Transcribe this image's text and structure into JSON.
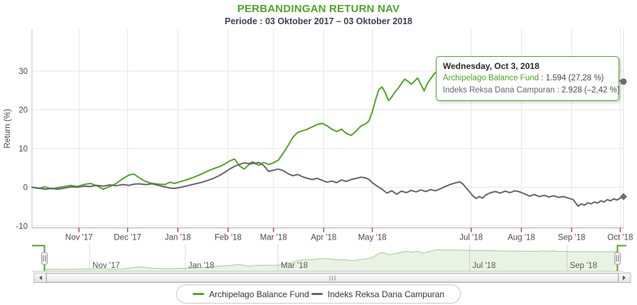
{
  "chart_data": {
    "type": "line",
    "title": "PERBANDINGAN RETURN NAV",
    "subtitle": "Periode : 03 Oktober 2017 – 03 Oktober 2018",
    "ylabel": "Return (%)",
    "ylim": [
      -10,
      40
    ],
    "grid": true,
    "legend_position": "bottom-center",
    "x_range_days": 365,
    "yticks": [
      {
        "value": 30,
        "label": "30"
      },
      {
        "value": 20,
        "label": "20"
      },
      {
        "value": 10,
        "label": "10"
      },
      {
        "value": 0,
        "label": "0"
      },
      {
        "value": -10,
        "label": "-10"
      }
    ],
    "xticks": [
      {
        "day": 29,
        "label": "Nov '17"
      },
      {
        "day": 59,
        "label": "Dec '17"
      },
      {
        "day": 90,
        "label": "Jan '18"
      },
      {
        "day": 121,
        "label": "Feb '18"
      },
      {
        "day": 149,
        "label": "Mar '18"
      },
      {
        "day": 180,
        "label": "Apr '18"
      },
      {
        "day": 210,
        "label": "May '18"
      },
      {
        "day": 271,
        "label": "Jul '18"
      },
      {
        "day": 302,
        "label": "Aug '18"
      },
      {
        "day": 333,
        "label": "Sep '18"
      },
      {
        "day": 363,
        "label": "Oct '18"
      }
    ],
    "series": [
      {
        "name": "Archipelago Balance Fund",
        "color": "#53A428",
        "end_marker": "circle",
        "points": [
          [
            0,
            0
          ],
          [
            4,
            -0.3
          ],
          [
            8,
            0.1
          ],
          [
            12,
            -0.4
          ],
          [
            16,
            -0.1
          ],
          [
            20,
            0.2
          ],
          [
            24,
            0.5
          ],
          [
            28,
            0.2
          ],
          [
            32,
            0.7
          ],
          [
            36,
            1
          ],
          [
            40,
            0.4
          ],
          [
            44,
            -0.5
          ],
          [
            48,
            0.2
          ],
          [
            52,
            1
          ],
          [
            56,
            2.2
          ],
          [
            60,
            3.2
          ],
          [
            63,
            3.4
          ],
          [
            66,
            2.5
          ],
          [
            70,
            1.5
          ],
          [
            74,
            1
          ],
          [
            78,
            0.8
          ],
          [
            82,
            0.7
          ],
          [
            85,
            1.3
          ],
          [
            88,
            1
          ],
          [
            92,
            1.5
          ],
          [
            96,
            2
          ],
          [
            100,
            2.6
          ],
          [
            104,
            3.3
          ],
          [
            108,
            4.1
          ],
          [
            112,
            4.8
          ],
          [
            116,
            5.4
          ],
          [
            119,
            6
          ],
          [
            122,
            6.8
          ],
          [
            125,
            7.3
          ],
          [
            128,
            5.5
          ],
          [
            131,
            4.7
          ],
          [
            134,
            5.9
          ],
          [
            137,
            6.2
          ],
          [
            140,
            5.7
          ],
          [
            143,
            6.4
          ],
          [
            146,
            5.9
          ],
          [
            149,
            6.3
          ],
          [
            152,
            7
          ],
          [
            155,
            8.8
          ],
          [
            158,
            10.8
          ],
          [
            161,
            12.9
          ],
          [
            164,
            14.2
          ],
          [
            167,
            14.6
          ],
          [
            170,
            15
          ],
          [
            173,
            15.6
          ],
          [
            176,
            16.2
          ],
          [
            179,
            16.5
          ],
          [
            182,
            15.9
          ],
          [
            185,
            15
          ],
          [
            188,
            14.4
          ],
          [
            191,
            15
          ],
          [
            194,
            13.9
          ],
          [
            197,
            13.4
          ],
          [
            200,
            14.5
          ],
          [
            203,
            15.8
          ],
          [
            206,
            16.4
          ],
          [
            208,
            17.2
          ],
          [
            210,
            19.5
          ],
          [
            212,
            22.5
          ],
          [
            214,
            25.2
          ],
          [
            216,
            25.9
          ],
          [
            218,
            24.4
          ],
          [
            220,
            22.4
          ],
          [
            222,
            23.3
          ],
          [
            224,
            24.6
          ],
          [
            226,
            25.6
          ],
          [
            228,
            26.8
          ],
          [
            230,
            27.9
          ],
          [
            232,
            27.4
          ],
          [
            234,
            26.6
          ],
          [
            236,
            27.4
          ],
          [
            238,
            28.2
          ],
          [
            240,
            26.5
          ],
          [
            242,
            24.9
          ],
          [
            244,
            26.8
          ],
          [
            246,
            28
          ],
          [
            248,
            29.2
          ],
          [
            250,
            30
          ],
          [
            252,
            30.4
          ],
          [
            254,
            29.6
          ],
          [
            256,
            30.1
          ],
          [
            258,
            29.9
          ],
          [
            260,
            30.3
          ],
          [
            262,
            29.6
          ],
          [
            264,
            30
          ],
          [
            266,
            29.4
          ],
          [
            268,
            29.8
          ],
          [
            270,
            29.2
          ],
          [
            273,
            29.6
          ],
          [
            276,
            28.9
          ],
          [
            279,
            29.3
          ],
          [
            282,
            28.6
          ],
          [
            285,
            29
          ],
          [
            288,
            28.4
          ],
          [
            291,
            28.8
          ],
          [
            294,
            28.2
          ],
          [
            297,
            28.6
          ],
          [
            300,
            28
          ],
          [
            303,
            28.5
          ],
          [
            306,
            27.9
          ],
          [
            309,
            28.3
          ],
          [
            312,
            27.7
          ],
          [
            315,
            28.2
          ],
          [
            318,
            28.6
          ],
          [
            321,
            28
          ],
          [
            324,
            28.4
          ],
          [
            327,
            27.8
          ],
          [
            330,
            27.4
          ],
          [
            333,
            27.9
          ],
          [
            336,
            27.3
          ],
          [
            339,
            27.7
          ],
          [
            342,
            27.2
          ],
          [
            345,
            27.6
          ],
          [
            348,
            27.1
          ],
          [
            351,
            27.5
          ],
          [
            354,
            27
          ],
          [
            357,
            27.4
          ],
          [
            360,
            26.9
          ],
          [
            362,
            27.6
          ],
          [
            365,
            27.28
          ]
        ]
      },
      {
        "name": "Indeks Reksa Dana Campuran",
        "color": "#65656F",
        "end_marker": "diamond",
        "points": [
          [
            0,
            0
          ],
          [
            4,
            -0.2
          ],
          [
            8,
            -0.5
          ],
          [
            12,
            -0.3
          ],
          [
            16,
            -0.5
          ],
          [
            20,
            -0.2
          ],
          [
            24,
            0.1
          ],
          [
            28,
            0
          ],
          [
            32,
            0.3
          ],
          [
            36,
            0.2
          ],
          [
            40,
            0.5
          ],
          [
            44,
            0.3
          ],
          [
            48,
            0.6
          ],
          [
            52,
            0.4
          ],
          [
            56,
            0.7
          ],
          [
            60,
            0.5
          ],
          [
            63,
            0.8
          ],
          [
            66,
            0.9
          ],
          [
            70,
            0.7
          ],
          [
            74,
            0.9
          ],
          [
            78,
            0.5
          ],
          [
            82,
            0.1
          ],
          [
            85,
            -0.2
          ],
          [
            88,
            -0.3
          ],
          [
            92,
            0
          ],
          [
            96,
            0.4
          ],
          [
            100,
            0.8
          ],
          [
            104,
            1.2
          ],
          [
            108,
            1.7
          ],
          [
            112,
            2.3
          ],
          [
            116,
            3.1
          ],
          [
            119,
            3.9
          ],
          [
            122,
            4.7
          ],
          [
            125,
            5.4
          ],
          [
            128,
            5.9
          ],
          [
            131,
            6.3
          ],
          [
            134,
            6.1
          ],
          [
            136,
            6.5
          ],
          [
            138,
            6.2
          ],
          [
            140,
            6.4
          ],
          [
            143,
            5.6
          ],
          [
            146,
            4.1
          ],
          [
            149,
            4.4
          ],
          [
            152,
            4.7
          ],
          [
            155,
            4.3
          ],
          [
            158,
            3.5
          ],
          [
            161,
            3
          ],
          [
            164,
            3.3
          ],
          [
            167,
            2.7
          ],
          [
            170,
            2.3
          ],
          [
            173,
            2
          ],
          [
            176,
            2.3
          ],
          [
            179,
            1.8
          ],
          [
            182,
            1.3
          ],
          [
            185,
            1.6
          ],
          [
            188,
            1.2
          ],
          [
            191,
            1.9
          ],
          [
            194,
            1.5
          ],
          [
            197,
            2
          ],
          [
            200,
            2.3
          ],
          [
            203,
            2.6
          ],
          [
            206,
            2.4
          ],
          [
            208,
            2
          ],
          [
            210,
            1.2
          ],
          [
            213,
            0.3
          ],
          [
            216,
            -0.5
          ],
          [
            219,
            -1.5
          ],
          [
            222,
            -0.9
          ],
          [
            225,
            -1.8
          ],
          [
            228,
            -1
          ],
          [
            231,
            -1.4
          ],
          [
            234,
            -0.8
          ],
          [
            237,
            -1.2
          ],
          [
            240,
            -0.7
          ],
          [
            243,
            -1.1
          ],
          [
            246,
            -0.6
          ],
          [
            249,
            -0.9
          ],
          [
            252,
            -0.4
          ],
          [
            255,
            0.2
          ],
          [
            258,
            0.7
          ],
          [
            261,
            1.1
          ],
          [
            264,
            1.4
          ],
          [
            266,
            0.8
          ],
          [
            268,
            -0.2
          ],
          [
            270,
            -1.2
          ],
          [
            272,
            -2.2
          ],
          [
            274,
            -2.9
          ],
          [
            276,
            -2.4
          ],
          [
            278,
            -2.8
          ],
          [
            280,
            -2
          ],
          [
            283,
            -1.4
          ],
          [
            286,
            -1.1
          ],
          [
            289,
            -1.5
          ],
          [
            292,
            -1
          ],
          [
            295,
            -1.4
          ],
          [
            298,
            -0.9
          ],
          [
            301,
            -1.2
          ],
          [
            304,
            -1.7
          ],
          [
            307,
            -2.3
          ],
          [
            310,
            -1.9
          ],
          [
            313,
            -2.4
          ],
          [
            316,
            -2.1
          ],
          [
            319,
            -2.5
          ],
          [
            322,
            -2.2
          ],
          [
            325,
            -2.6
          ],
          [
            328,
            -2.4
          ],
          [
            331,
            -2.8
          ],
          [
            334,
            -3.2
          ],
          [
            337,
            -4.9
          ],
          [
            339,
            -4.3
          ],
          [
            341,
            -4.6
          ],
          [
            343,
            -4
          ],
          [
            345,
            -4.3
          ],
          [
            347,
            -3.8
          ],
          [
            349,
            -4.1
          ],
          [
            351,
            -3.5
          ],
          [
            353,
            -3.8
          ],
          [
            355,
            -3.2
          ],
          [
            357,
            -3.5
          ],
          [
            359,
            -3
          ],
          [
            361,
            -3.3
          ],
          [
            363,
            -2.8
          ],
          [
            365,
            -2.42
          ]
        ]
      }
    ],
    "navigator": {
      "xticks": [
        {
          "day": 29,
          "label": "Nov '17"
        },
        {
          "day": 90,
          "label": "Jan '18"
        },
        {
          "day": 149,
          "label": "Mar '18"
        },
        {
          "day": 271,
          "label": "Jul '18"
        },
        {
          "day": 333,
          "label": "Sep '18"
        }
      ]
    }
  },
  "tooltip": {
    "date": "Wednesday, Oct 3, 2018",
    "rows": [
      {
        "label": "Archipelago Balance Fund",
        "value_text": " : 1.594 (27,28 %)"
      },
      {
        "label": "Indeks Reksa Dana Campuran",
        "value_text": " : 2.928 (–2,42 %)"
      }
    ]
  },
  "palette": {
    "title_green": "#53A428",
    "series_green": "#53A428",
    "series_gray": "#65656F",
    "marker_gray": "#6E6E78",
    "grid": "#E6E6E6",
    "axis_line": "#C0C0C0",
    "tick_red": "#C84236",
    "label": "#4A4A58",
    "nav_fill": "rgba(83,164,40,0.13)",
    "nav_line": "rgba(83,164,40,0.5)"
  }
}
